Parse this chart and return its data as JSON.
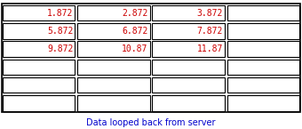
{
  "rows": 6,
  "cols": 4,
  "values": [
    [
      "1.872",
      "2.872",
      "3.872",
      ""
    ],
    [
      "5.872",
      "6.872",
      "7.872",
      ""
    ],
    [
      "9.872",
      "10.87",
      "11.87",
      ""
    ],
    [
      "",
      "",
      "",
      ""
    ],
    [
      "",
      "",
      "",
      ""
    ],
    [
      "",
      "",
      "",
      ""
    ]
  ],
  "text_color": "#cc0000",
  "border_color": "#000000",
  "bg_color": "#ffffff",
  "caption": "Data looped back from server",
  "caption_color": "#0000cc",
  "caption_fontsize": 7.0,
  "value_fontsize": 7.0,
  "fig_width": 3.4,
  "fig_height": 1.45,
  "dpi": 100
}
